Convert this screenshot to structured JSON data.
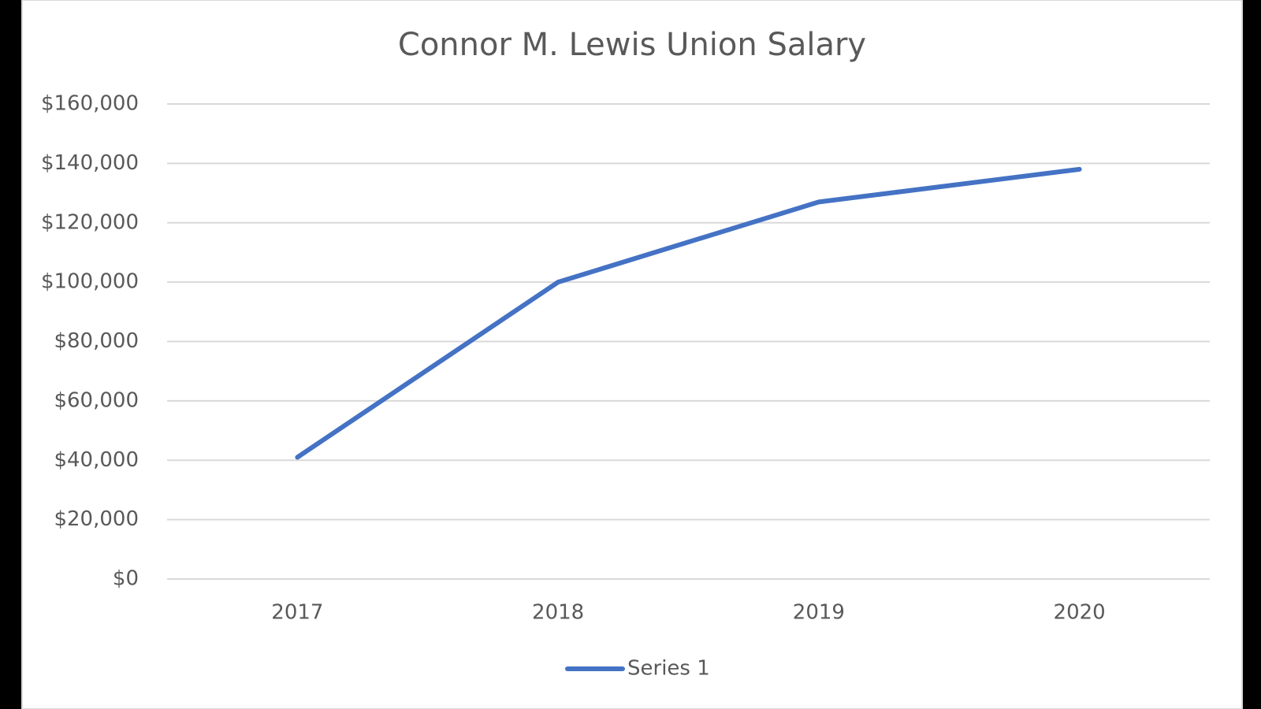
{
  "chart_data": {
    "type": "line",
    "title": "Connor M. Lewis Union Salary",
    "categories": [
      "2017",
      "2018",
      "2019",
      "2020"
    ],
    "series": [
      {
        "name": "Series 1",
        "color": "#4472c4",
        "values": [
          41000,
          100000,
          127000,
          138000
        ]
      }
    ],
    "ylim": [
      0,
      160000
    ],
    "yticks": [
      {
        "value": 0,
        "label": "$0"
      },
      {
        "value": 20000,
        "label": "$20,000"
      },
      {
        "value": 40000,
        "label": "$40,000"
      },
      {
        "value": 60000,
        "label": "$60,000"
      },
      {
        "value": 80000,
        "label": "$80,000"
      },
      {
        "value": 100000,
        "label": "$100,000"
      },
      {
        "value": 120000,
        "label": "$120,000"
      },
      {
        "value": 140000,
        "label": "$140,000"
      },
      {
        "value": 160000,
        "label": "$160,000"
      }
    ],
    "grid": true,
    "legend": "bottom"
  }
}
